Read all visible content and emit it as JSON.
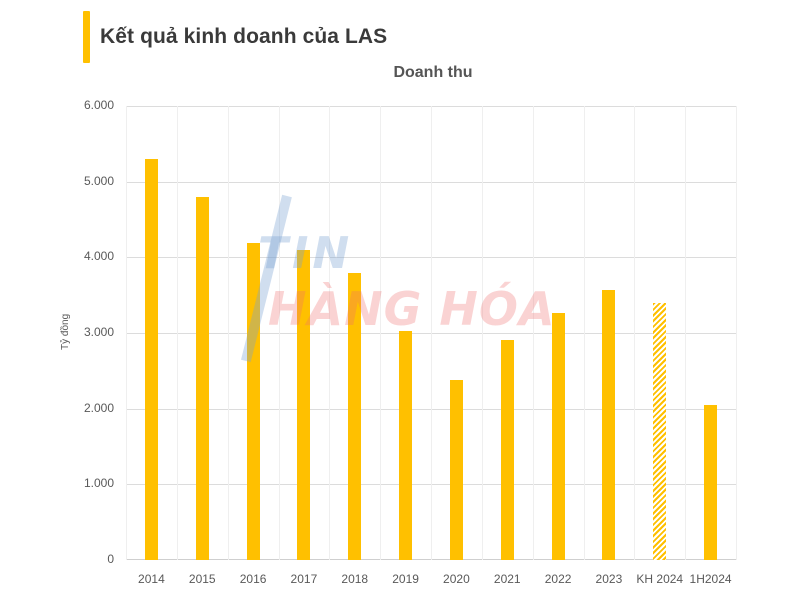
{
  "header": {
    "title": "Kết quả kinh doanh của LAS",
    "accent_color": "#FFC000"
  },
  "watermark": {
    "line1": "TIN",
    "line2": "HÀNG HÓA"
  },
  "chart_data": {
    "type": "bar",
    "title": "Doanh thu",
    "xlabel": "",
    "ylabel": "Tỷ đồng",
    "ylim": [
      0,
      6000
    ],
    "yticks": [
      "0",
      "1.000",
      "2.000",
      "3.000",
      "4.000",
      "5.000",
      "6.000"
    ],
    "grid": true,
    "legend": null,
    "categories": [
      "2014",
      "2015",
      "2016",
      "2017",
      "2018",
      "2019",
      "2020",
      "2021",
      "2022",
      "2023",
      "KH 2024",
      "1H2024"
    ],
    "values": [
      5300,
      4800,
      4190,
      4100,
      3790,
      3030,
      2380,
      2910,
      3260,
      3570,
      3400,
      2050
    ],
    "styles": [
      "solid",
      "solid",
      "solid",
      "solid",
      "solid",
      "solid",
      "solid",
      "solid",
      "solid",
      "solid",
      "hatched",
      "solid"
    ],
    "bar_color": "#FFC000"
  }
}
